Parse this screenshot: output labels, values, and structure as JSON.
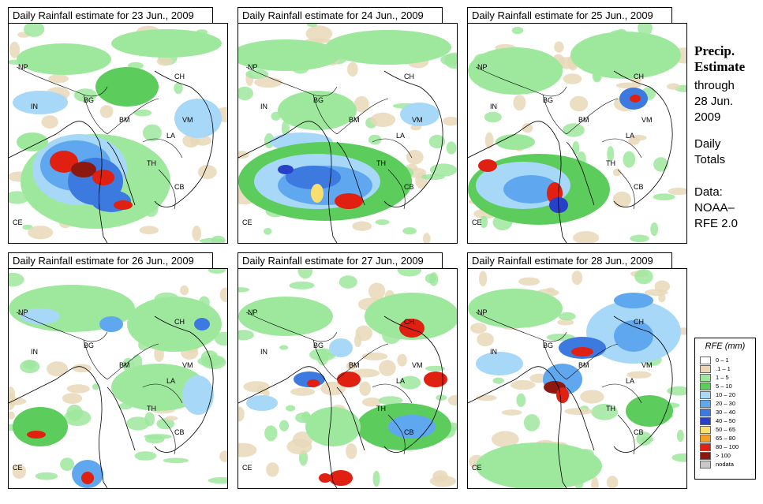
{
  "panels": [
    {
      "title": "Daily Rainfall estimate for  23 Jun., 2009",
      "day": 23
    },
    {
      "title": "Daily Rainfall estimate for  24 Jun., 2009",
      "day": 24
    },
    {
      "title": "Daily Rainfall estimate for  25 Jun., 2009",
      "day": 25
    },
    {
      "title": "Daily Rainfall estimate for  26 Jun., 2009",
      "day": 26
    },
    {
      "title": "Daily Rainfall estimate for  27 Jun., 2009",
      "day": 27
    },
    {
      "title": "Daily Rainfall estimate for  28 Jun., 2009",
      "day": 28
    }
  ],
  "country_labels": [
    "NP",
    "CH",
    "IN",
    "BG",
    "BM",
    "VM",
    "LA",
    "TH",
    "CB",
    "CE"
  ],
  "side": {
    "heading_line1": "Precip.",
    "heading_line2": "Estimate",
    "through": "through",
    "date_line1": "28 Jun.",
    "date_line2": "2009",
    "daily": "Daily",
    "totals": "Totals",
    "data_label": "Data:",
    "source1": "NOAA–",
    "source2": "RFE 2.0"
  },
  "legend": {
    "title": "RFE (mm)",
    "items": [
      {
        "label": "0 – 1",
        "color": "#ffffff"
      },
      {
        "label": ".1 – 1",
        "color": "#e8d8b8"
      },
      {
        "label": "1 – 5",
        "color": "#9ee89e"
      },
      {
        "label": "5 – 10",
        "color": "#5ccc5c"
      },
      {
        "label": "10 – 20",
        "color": "#a8d8f8"
      },
      {
        "label": "20 – 30",
        "color": "#5fa8f0"
      },
      {
        "label": "30 – 40",
        "color": "#3c7ae0"
      },
      {
        "label": "40 – 50",
        "color": "#2840c8"
      },
      {
        "label": "50 – 65",
        "color": "#f8e070"
      },
      {
        "label": "65 – 80",
        "color": "#f8a020"
      },
      {
        "label": "80 – 100",
        "color": "#e02010"
      },
      {
        "label": "> 100",
        "color": "#8c1810"
      },
      {
        "label": "nodata",
        "color": "#c8c8c8"
      }
    ]
  }
}
